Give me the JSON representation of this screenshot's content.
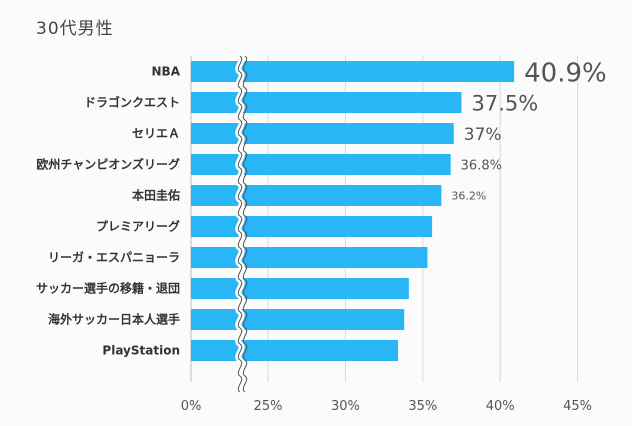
{
  "title": "30代男性",
  "chart_data": {
    "type": "bar",
    "orientation": "horizontal",
    "title": "30代男性",
    "categories": [
      "NBA",
      "ドラゴンクエスト",
      "セリエＡ",
      "欧州チャンピオンズリーグ",
      "本田圭佑",
      "プレミアリーグ",
      "リーガ・エスパニョーラ",
      "サッカー選手の移籍・退団",
      "海外サッカー日本人選手",
      "PlayStation"
    ],
    "values": [
      40.9,
      37.5,
      37,
      36.8,
      36.2,
      35.6,
      35.3,
      34.1,
      33.8,
      33.4
    ],
    "value_labels": [
      "40.9%",
      "37.5%",
      "37%",
      "36.8%",
      "36.2%",
      "",
      "",
      "",
      "",
      ""
    ],
    "x_ticks": [
      "0%",
      "25%",
      "30%",
      "35%",
      "40%",
      "45%"
    ],
    "axis_break": [
      0,
      25
    ],
    "xlim": [
      25,
      45
    ],
    "bar_color": "#29b6f6",
    "gridlines": true
  }
}
